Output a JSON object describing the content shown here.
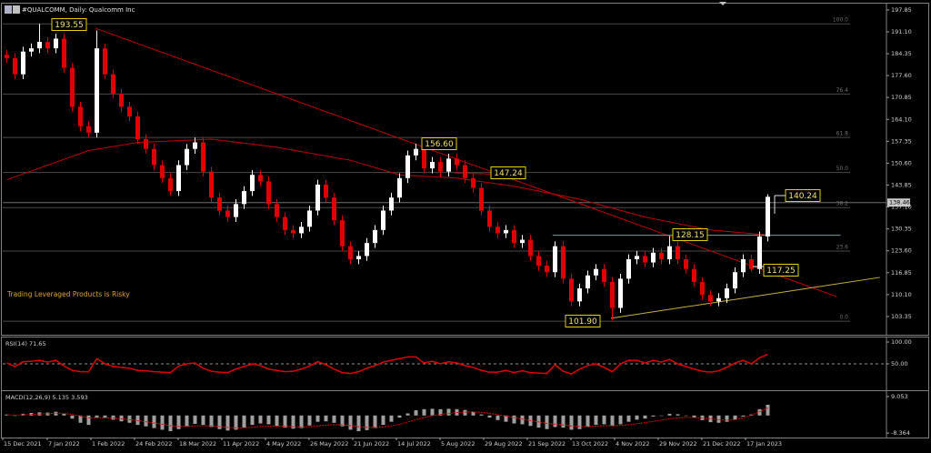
{
  "chart_data": [
    {
      "type": "candlestick",
      "title": "#QUALCOMM, Daily:  Qualcomm Inc",
      "note": "Trading Leveraged Products is Risky",
      "up_color": "#ffffff",
      "down_color": "#e00000",
      "open": [
        184,
        183,
        178,
        185,
        186,
        188,
        186,
        189,
        180,
        168,
        162,
        160,
        186,
        178,
        172,
        168,
        165,
        158,
        155,
        150,
        146,
        142,
        150,
        155,
        157,
        148,
        140,
        136,
        134,
        138,
        142,
        147,
        145,
        138,
        134,
        130,
        129,
        131,
        136,
        144,
        140,
        133,
        125,
        121,
        122,
        126,
        130,
        136,
        140,
        146,
        153,
        155,
        149,
        151,
        148,
        152,
        150,
        146,
        143,
        136,
        131,
        129,
        130,
        126,
        127,
        122,
        119,
        117,
        125,
        115,
        108,
        112,
        116,
        118,
        114,
        106,
        115,
        121,
        122,
        120,
        123,
        121,
        125,
        121,
        118,
        114,
        110,
        108,
        109,
        112,
        117,
        121,
        118,
        128
      ],
      "high": [
        185.5,
        184.5,
        186.5,
        187.5,
        193.55,
        189.5,
        190.5,
        190.5,
        181.5,
        169.5,
        163.5,
        191.5,
        187.5,
        179.5,
        173.5,
        169.5,
        166.5,
        159.5,
        156.5,
        151.5,
        147.5,
        151.5,
        156.5,
        158.5,
        158.5,
        149.5,
        141.5,
        137.5,
        139.5,
        143.5,
        148.5,
        148.5,
        146.5,
        139.5,
        135.5,
        131.5,
        132.5,
        137.5,
        145.5,
        145.5,
        141.5,
        134.5,
        126.5,
        123.5,
        127.5,
        131.5,
        137.5,
        141.5,
        147.5,
        154.5,
        156.6,
        156.5,
        152.5,
        152.5,
        153.5,
        153.5,
        151.5,
        147.5,
        144.5,
        137.5,
        132.5,
        131.5,
        131.5,
        128.5,
        128.5,
        123.5,
        120.5,
        126.5,
        126.5,
        116.5,
        113.5,
        117.5,
        119.5,
        119.5,
        115.5,
        116.5,
        122.5,
        123.5,
        123.5,
        124.5,
        124.5,
        128.15,
        126.5,
        122.5,
        119.5,
        115.5,
        111.5,
        110.5,
        113.5,
        118.5,
        122.5,
        122.5,
        129.5,
        141
      ],
      "low": [
        181.5,
        176.5,
        176.5,
        183.5,
        184.5,
        184.5,
        184.5,
        178.5,
        166.5,
        160.5,
        158.5,
        158.5,
        176.5,
        170.5,
        166.5,
        163.5,
        156.5,
        153.5,
        148.5,
        144.5,
        140.5,
        140.5,
        148.5,
        153.5,
        146.5,
        138.5,
        134.5,
        132.5,
        132.5,
        136.5,
        140.5,
        143.5,
        136.5,
        132.5,
        128.5,
        127.5,
        127.5,
        129.5,
        134.5,
        138.5,
        131.5,
        123.5,
        119.5,
        119.5,
        120.5,
        124.5,
        128.5,
        134.5,
        138.5,
        144.5,
        151.5,
        147.5,
        147.5,
        146.5,
        146.5,
        148.5,
        144.5,
        141.5,
        134.5,
        129.5,
        127.5,
        127.5,
        124.5,
        124.5,
        120.5,
        117.5,
        115.5,
        115.5,
        113.5,
        106.5,
        106.5,
        110.5,
        114.5,
        112.5,
        101.9,
        104.5,
        113.5,
        119.5,
        118.5,
        118.5,
        119.5,
        119.5,
        119.5,
        116.5,
        112.5,
        108.5,
        106.5,
        106.5,
        107.5,
        110.5,
        115.5,
        117.25,
        116.5,
        126.5
      ],
      "close": [
        183,
        178,
        185,
        186,
        188,
        186,
        189,
        180,
        168,
        162,
        160,
        186,
        178,
        172,
        168,
        165,
        158,
        155,
        150,
        146,
        142,
        150,
        155,
        157,
        148,
        140,
        136,
        134,
        138,
        142,
        147,
        145,
        138,
        134,
        130,
        129,
        131,
        136,
        144,
        140,
        133,
        125,
        121,
        122,
        126,
        130,
        136,
        140,
        146,
        153,
        155,
        149,
        151,
        148,
        152,
        150,
        146,
        143,
        136,
        131,
        129,
        130,
        126,
        127,
        122,
        119,
        117,
        125,
        115,
        108,
        112,
        116,
        118,
        114,
        106,
        115,
        121,
        122,
        120,
        123,
        121,
        125,
        121,
        118,
        114,
        110,
        108,
        109,
        112,
        117,
        121,
        118,
        128,
        140.24
      ],
      "xlim": [
        -0.5,
        107.5
      ],
      "xticks": [
        {
          "value": -0.5,
          "label": "15 Dec 2021"
        },
        {
          "value": 4.94,
          "label": "7 Jan 2022"
        },
        {
          "value": 10.28,
          "label": "1 Feb 2022"
        },
        {
          "value": 15.61,
          "label": "24 Feb 2022"
        },
        {
          "value": 20.94,
          "label": "18 Mar 2022"
        },
        {
          "value": 26.28,
          "label": "11 Apr 2022"
        },
        {
          "value": 31.61,
          "label": "4 May 2022"
        },
        {
          "value": 36.94,
          "label": "26 May 2022"
        },
        {
          "value": 42.28,
          "label": "21 Jun 2022"
        },
        {
          "value": 47.61,
          "label": "14 Jul 2022"
        },
        {
          "value": 52.94,
          "label": "5 Aug 2022"
        },
        {
          "value": 58.28,
          "label": "29 Aug 2022"
        },
        {
          "value": 63.61,
          "label": "21 Sep 2022"
        },
        {
          "value": 68.94,
          "label": "13 Oct 2022"
        },
        {
          "value": 74.28,
          "label": "4 Nov 2022"
        },
        {
          "value": 79.61,
          "label": "29 Nov 2022"
        },
        {
          "value": 84.94,
          "label": "21 Dec 2022"
        },
        {
          "value": 90.28,
          "label": "17 Jan 2023"
        }
      ],
      "ylim": [
        98.0,
        199.5
      ],
      "yticks": [
        197.85,
        {
          "value": 191.1,
          "label": "191.10"
        },
        184.35,
        {
          "value": 177.6,
          "label": "177.60"
        },
        170.85,
        {
          "value": 164.1,
          "label": "164.10"
        },
        157.35,
        {
          "value": 150.6,
          "label": "150.60"
        },
        143.85,
        {
          "value": 137.1,
          "label": "137.10"
        },
        130.35,
        {
          "value": 123.6,
          "label": "123.60"
        },
        116.85,
        {
          "value": 110.1,
          "label": "110.10"
        },
        103.35
      ],
      "last_price": 138.46,
      "overlays": [
        {
          "color": "#c00000",
          "x": [
            0,
            5,
            10,
            16,
            25,
            33,
            42,
            48,
            55,
            62,
            70,
            78,
            86,
            93
          ],
          "values": [
            145.5,
            150,
            154.5,
            157,
            158,
            155.5,
            151.5,
            147,
            146,
            143.5,
            139.5,
            134,
            130,
            128.5
          ]
        }
      ],
      "lines": [
        {
          "color": "#c00000",
          "x": [
            10.83,
            101.4
          ],
          "values": [
            192.2,
            109.5
          ]
        },
        {
          "color": "#c00000",
          "x": [
            54.7,
            59.2
          ],
          "values": [
            147.6,
            147.24
          ]
        },
        {
          "color": "#c8b040",
          "x": [
            73.83,
            106.7
          ],
          "values": [
            102.8,
            115.4
          ]
        },
        {
          "color": "#7a9aa0",
          "x": [
            66.7,
            101.9
          ],
          "values": [
            128.4,
            128.4
          ]
        }
      ],
      "fib_color": "#4a4a4a",
      "fib_levels": [
        {
          "label": "100.0",
          "value": 193.55
        },
        {
          "label": "76.4",
          "value": 171.92
        },
        {
          "label": "61.8",
          "value": 158.54
        },
        {
          "label": "50.0",
          "value": 147.73
        },
        {
          "label": "38.2",
          "value": 136.91
        },
        {
          "label": "23.6",
          "value": 123.53
        },
        {
          "label": "0.0",
          "value": 101.9
        }
      ],
      "annotations": [
        "193.55",
        "156.60",
        "147.24",
        "128.15",
        "117.25",
        "101.90",
        "140.24"
      ]
    },
    {
      "type": "line",
      "title": "RSI(14) 71.65",
      "color": "#e00000",
      "values": [
        52,
        44,
        55,
        56,
        58,
        54,
        58,
        45,
        35,
        32,
        32,
        62,
        50,
        44,
        42,
        40,
        35,
        34,
        32,
        31,
        30,
        45,
        50,
        52,
        40,
        33,
        31,
        30,
        38,
        44,
        50,
        46,
        38,
        35,
        32,
        33,
        38,
        45,
        55,
        48,
        38,
        30,
        28,
        32,
        40,
        46,
        54,
        58,
        62,
        66,
        66,
        52,
        56,
        50,
        55,
        52,
        46,
        42,
        35,
        31,
        31,
        35,
        30,
        34,
        30,
        29,
        28,
        48,
        33,
        27,
        38,
        46,
        50,
        42,
        32,
        50,
        58,
        58,
        52,
        58,
        54,
        60,
        50,
        44,
        38,
        33,
        31,
        34,
        42,
        52,
        58,
        50,
        64,
        71.65
      ],
      "ylim": [
        -8.3,
        108.3
      ],
      "yticks": [
        {
          "value": 100,
          "label": "100.00"
        },
        {
          "value": 50,
          "label": "50.00"
        }
      ]
    },
    {
      "type": "macd",
      "title": "MACD(12,26,9) 5.135 3.593",
      "series": [
        {
          "color": "#a0a0a0",
          "values": [
            0.5,
            0,
            0.8,
            1.2,
            1.5,
            1.4,
            1.8,
            0.8,
            -1.5,
            -3.5,
            -4.5,
            -1,
            -1.2,
            -2,
            -2.8,
            -3.5,
            -4.5,
            -5.2,
            -6,
            -6.8,
            -7.5,
            -6.5,
            -5.2,
            -4,
            -4.5,
            -5.5,
            -6.5,
            -7.2,
            -6.8,
            -5.8,
            -4.5,
            -3.8,
            -4.2,
            -5,
            -5.8,
            -6.3,
            -6,
            -4.8,
            -3,
            -2.8,
            -3.5,
            -5.2,
            -6.8,
            -7.5,
            -7,
            -6,
            -4.5,
            -3,
            -1,
            1,
            2.5,
            3,
            3.2,
            3,
            3.2,
            3,
            2.6,
            1.8,
            0.5,
            -1,
            -2.2,
            -3,
            -3.8,
            -4.2,
            -5,
            -5.8,
            -6.5,
            -5.5,
            -5.8,
            -6.8,
            -6.5,
            -5.5,
            -4.5,
            -4.2,
            -5,
            -4.2,
            -3,
            -2,
            -1.5,
            -0.5,
            -0.2,
            0.8,
            0.6,
            0,
            -1,
            -2.2,
            -3.2,
            -3.5,
            -3,
            -2,
            -0.5,
            0.5,
            3,
            5.135
          ]
        },
        {
          "color": "#e00000",
          "values": [
            0.3,
            0.2,
            0.3,
            0.5,
            0.7,
            0.9,
            1.1,
            1,
            0.5,
            -0.3,
            -1.2,
            -1.1,
            -1.1,
            -1.3,
            -1.6,
            -2,
            -2.5,
            -3,
            -3.6,
            -4.2,
            -4.9,
            -5.2,
            -5.2,
            -5,
            -4.9,
            -5,
            -5.3,
            -5.7,
            -5.9,
            -5.9,
            -5.6,
            -5.3,
            -5.1,
            -5.1,
            -5.2,
            -5.4,
            -5.5,
            -5.4,
            -5,
            -4.6,
            -4.4,
            -4.5,
            -4.9,
            -5.4,
            -5.7,
            -5.7,
            -5.5,
            -5,
            -4.2,
            -3.1,
            -2,
            -1,
            -0.1,
            0.5,
            1,
            1.4,
            1.6,
            1.7,
            1.5,
            1,
            0.4,
            -0.3,
            -1,
            -1.7,
            -2.4,
            -3.1,
            -3.8,
            -4.2,
            -4.5,
            -5,
            -5.3,
            -5.3,
            -5.1,
            -4.9,
            -4.9,
            -4.8,
            -4.4,
            -3.9,
            -3.4,
            -2.8,
            -2.2,
            -1.6,
            -1.2,
            -0.9,
            -1,
            -1.2,
            -1.6,
            -2,
            -2.2,
            -2,
            -1.2,
            0.2,
            1.8,
            3.593
          ]
        }
      ],
      "ylim": [
        -10.1,
        11.2
      ],
      "yticks": [
        9.053,
        -8.364
      ]
    }
  ]
}
